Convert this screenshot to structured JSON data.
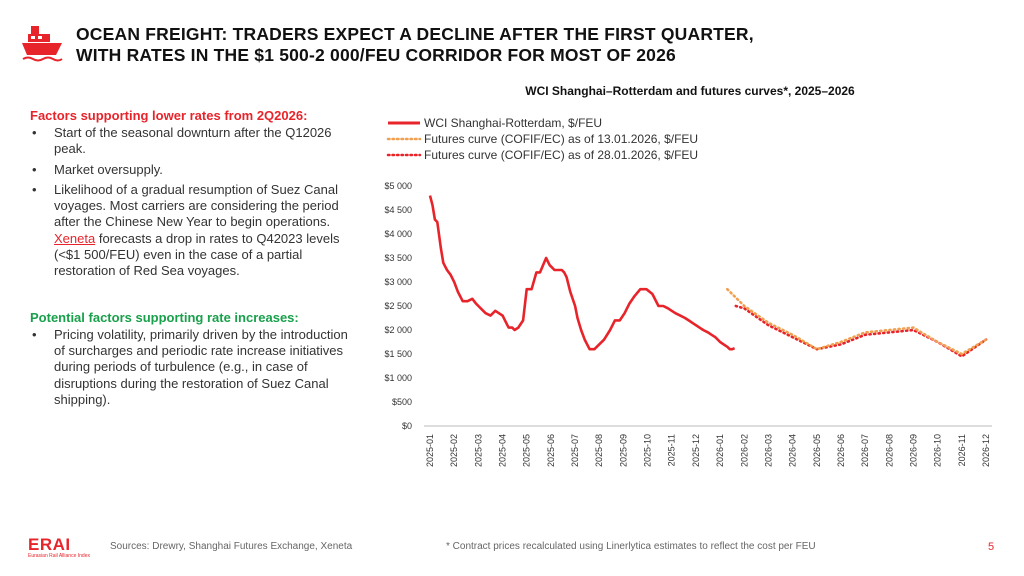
{
  "title": {
    "line1": "OCEAN FREIGHT: TRADERS EXPECT A DECLINE AFTER THE FIRST QUARTER,",
    "line2": "WITH RATES IN THE $1 500-2 000/FEU CORRIDOR FOR MOST OF 2026"
  },
  "icon": "ship-icon",
  "colors": {
    "accent": "#e8242b",
    "green": "#19a04b",
    "orange": "#f0a050"
  },
  "left": {
    "lower": {
      "heading": "Factors supporting lower rates from 2Q2026:",
      "bullets": [
        "Start of the seasonal downturn after the Q12026 peak.",
        "Market oversupply."
      ],
      "b3_pre": "Likelihood of a gradual resumption of Suez Canal voyages. Most carriers are considering the period after the Chinese New Year to begin operations.",
      "b3_link": "Xeneta",
      "b3_post": "forecasts a drop in rates to Q42023 levels (<$1 500/FEU) even in the case of a partial restoration of Red Sea voyages."
    },
    "higher": {
      "heading": "Potential factors supporting rate increases:",
      "bullets": [
        "Pricing volatility, primarily driven by the introduction of surcharges and periodic rate increase initiatives during periods of turbulence (e.g., in case of disruptions during the restoration of Suez Canal shipping)."
      ]
    }
  },
  "chart_data": {
    "type": "line",
    "title": "WCI Shanghai–Rotterdam and futures curves*, 2025–2026",
    "categories": [
      "2025-01",
      "2025-02",
      "2025-03",
      "2025-04",
      "2025-05",
      "2025-06",
      "2025-07",
      "2025-08",
      "2025-09",
      "2025-10",
      "2025-11",
      "2025-12",
      "2026-01",
      "2026-02",
      "2026-03",
      "2026-04",
      "2026-05",
      "2026-06",
      "2026-07",
      "2026-08",
      "2026-09",
      "2026-10",
      "2026-11",
      "2026-12"
    ],
    "yticks": [
      "$0",
      "$500",
      "$1 000",
      "$1 500",
      "$2 000",
      "$2 500",
      "$3 000",
      "$3 500",
      "$4 000",
      "$4 500",
      "$5 000"
    ],
    "ylim": [
      0,
      5000
    ],
    "series": [
      {
        "name": "WCI Shanghai-Rotterdam, $/FEU",
        "style": "solid",
        "color": "#e8242b",
        "x": [
          0,
          0.1,
          0.2,
          0.3,
          0.45,
          0.55,
          0.7,
          0.85,
          1.0,
          1.15,
          1.35,
          1.55,
          1.75,
          1.9,
          2.0,
          2.1,
          2.3,
          2.5,
          2.7,
          2.85,
          3.0,
          3.1,
          3.25,
          3.4,
          3.5,
          3.65,
          3.85,
          4.0,
          4.2,
          4.4,
          4.55,
          4.8,
          4.95,
          5.05,
          5.15,
          5.3,
          5.45,
          5.55,
          5.65,
          5.8,
          6.0,
          6.1,
          6.25,
          6.4,
          6.6,
          6.8,
          7.0,
          7.2,
          7.45,
          7.65,
          7.85,
          8.05,
          8.25,
          8.45,
          8.7,
          8.95,
          9.2,
          9.45,
          9.65,
          9.85,
          10.0,
          10.15,
          10.35,
          10.55,
          10.7,
          10.85,
          11.0,
          11.15,
          11.3,
          11.5,
          11.65,
          11.8,
          11.9,
          12.0,
          12.15,
          12.3,
          12.4,
          12.5,
          12.6
        ],
        "values": [
          4800,
          4600,
          4300,
          4250,
          3700,
          3400,
          3250,
          3150,
          3000,
          2800,
          2600,
          2600,
          2650,
          2550,
          2500,
          2450,
          2350,
          2300,
          2400,
          2350,
          2300,
          2200,
          2050,
          2050,
          2000,
          2050,
          2200,
          2850,
          2850,
          3200,
          3200,
          3500,
          3350,
          3300,
          3250,
          3250,
          3250,
          3200,
          3100,
          2800,
          2500,
          2250,
          2000,
          1800,
          1600,
          1600,
          1700,
          1800,
          2000,
          2200,
          2200,
          2350,
          2550,
          2700,
          2850,
          2850,
          2750,
          2500,
          2500,
          2450,
          2400,
          2350,
          2300,
          2250,
          2200,
          2150,
          2100,
          2050,
          2000,
          1950,
          1900,
          1850,
          1800,
          1750,
          1700,
          1650,
          1600,
          1600,
          1620
        ]
      },
      {
        "name": "Futures curve (COFIF/EC) as of 13.01.2026, $/FEU",
        "style": "dotted",
        "color": "#f0a050",
        "x": [
          12.3,
          13.0,
          14.0,
          15.0,
          16.0,
          17.0,
          18.0,
          19.0,
          20.0,
          21.0,
          22.0,
          23.0
        ],
        "values": [
          2850,
          2500,
          2150,
          1900,
          1600,
          1750,
          1950,
          2000,
          2050,
          1750,
          1500,
          1800
        ]
      },
      {
        "name": "Futures curve (COFIF/EC) as of 28.01.2026, $/FEU",
        "style": "dotted",
        "color": "#e8242b",
        "x": [
          12.65,
          13.0,
          14.0,
          15.0,
          16.0,
          17.0,
          18.0,
          19.0,
          20.0,
          21.0,
          22.0,
          23.0
        ],
        "values": [
          2500,
          2450,
          2100,
          1850,
          1600,
          1700,
          1900,
          1950,
          2000,
          1750,
          1450,
          1800
        ]
      }
    ]
  },
  "footer": {
    "logo": "ERAI",
    "logo_sub": "Eurasian Rail Alliance Index",
    "sources": "Sources: Drewry, Shanghai Futures Exchange, Xeneta",
    "footnote": "* Contract prices recalculated using Linerlytica estimates to reflect the cost per FEU",
    "page": "5"
  }
}
